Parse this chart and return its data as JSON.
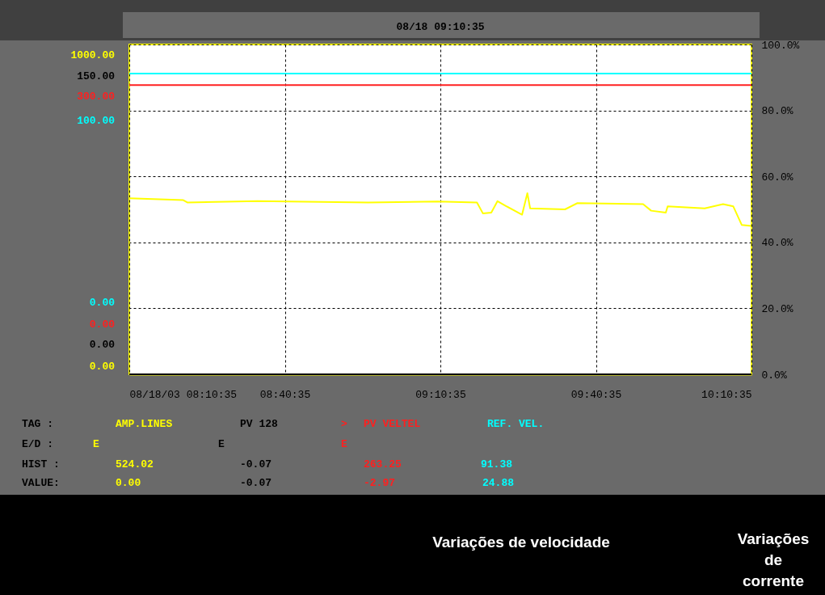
{
  "chart_data": {
    "type": "line",
    "title": "08/18 09:10:35",
    "series": [
      {
        "name": "AMP.LINES",
        "color": "#ffff00",
        "x": [
          8.1764,
          8.35,
          8.363,
          8.588,
          8.944,
          9.168,
          9.294,
          9.313,
          9.34,
          9.36,
          9.386,
          9.439,
          9.456,
          9.465,
          9.577,
          9.617,
          9.828,
          9.854,
          9.901,
          9.907,
          10.026,
          10.085,
          10.118,
          10.145,
          10.1764
        ],
        "values": [
          53.4,
          52.8,
          52.1,
          52.5,
          52.1,
          52.4,
          52.1,
          48.8,
          49.0,
          52.5,
          51.1,
          48.4,
          54.9,
          50.3,
          50.0,
          51.9,
          51.6,
          49.6,
          49.0,
          50.9,
          50.3,
          51.6,
          50.9,
          45.3,
          45.0
        ]
      },
      {
        "name": "PV 128",
        "color": "#000000",
        "x": [
          8.1764,
          10.1764
        ],
        "values": [
          0,
          0
        ]
      },
      {
        "name": "PV VELTEL",
        "color": "#ff2020",
        "x": [
          8.1764,
          8.6764,
          9.1764,
          9.6764,
          10.1764
        ],
        "values": [
          87.7,
          87.7,
          87.7,
          87.7,
          87.7
        ]
      },
      {
        "name": "REF. VEL.",
        "color": "#00ffff",
        "x": [
          8.1764,
          10.1764
        ],
        "values": [
          91.2,
          91.2
        ]
      }
    ],
    "xlim": [
      8.1764,
      10.1764
    ],
    "xticks": [
      {
        "value": 8.1764,
        "label": "08/18/03 08:10:35"
      },
      {
        "value": 8.6764,
        "label": "08:40:35"
      },
      {
        "value": 9.1764,
        "label": "09:10:35"
      },
      {
        "value": 9.6764,
        "label": "09:40:35"
      },
      {
        "value": 10.1764,
        "label": "10:10:35"
      }
    ],
    "ylim": [
      0,
      100
    ],
    "yticks": [
      {
        "value": 0,
        "label": "0.0%"
      },
      {
        "value": 20,
        "label": "20.0%"
      },
      {
        "value": 40,
        "label": "40.0%"
      },
      {
        "value": 60,
        "label": "60.0%"
      },
      {
        "value": 80,
        "label": "80.0%"
      },
      {
        "value": 100,
        "label": "100.0%"
      }
    ],
    "grid": true,
    "annotations": [
      "TAG  :",
      "E/D  :",
      "HIST :",
      "VALUE:",
      "E",
      "E",
      "E",
      "524.02",
      "-0.07",
      "263.25",
      "91.38",
      "0.00",
      "-0.07",
      "-2.97",
      "24.88",
      "1000.00",
      "150.00",
      "300.00",
      "100.00",
      "0.00",
      "0.00",
      "0.00",
      "0.00",
      "Variações de velocidade",
      "Variações\nde\ncorrente",
      ">"
    ]
  }
}
